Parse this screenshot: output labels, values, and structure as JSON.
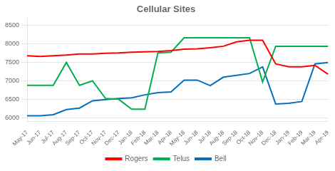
{
  "chart_data": {
    "type": "line",
    "title": "Cellular Sites",
    "categories": [
      "May-17",
      "Jun-17",
      "Jul-17",
      "Aug-17",
      "Sep-17",
      "Oct-17",
      "Nov-17",
      "Dec-17",
      "Jan-18",
      "Feb-18",
      "Mar-18",
      "Apr-18",
      "May-18",
      "Jun-18",
      "Jul-18",
      "Aug-18",
      "Sep-18",
      "Oct-18",
      "Nov-18",
      "Dec-18",
      "Jan-19",
      "Feb-19",
      "Mar-19",
      "Apr-19"
    ],
    "series": [
      {
        "name": "Rogers",
        "color": "#FF0000",
        "values": [
          7680,
          7660,
          7680,
          7700,
          7730,
          7730,
          7750,
          7760,
          7780,
          7790,
          7800,
          7820,
          7860,
          7870,
          7900,
          7940,
          8060,
          8100,
          8100,
          7460,
          7380,
          7380,
          7420,
          7180
        ]
      },
      {
        "name": "Telus",
        "color": "#00B050",
        "values": [
          6880,
          6880,
          6880,
          7500,
          6880,
          7000,
          6520,
          6500,
          6230,
          6230,
          7760,
          7780,
          8170,
          8170,
          8170,
          8170,
          8170,
          8170,
          6970,
          7940,
          7940,
          7940,
          7940,
          7940
        ]
      },
      {
        "name": "Bell",
        "color": "#0070C0",
        "values": [
          6050,
          6050,
          6080,
          6220,
          6260,
          6460,
          6490,
          6520,
          6540,
          6620,
          6680,
          6700,
          7020,
          7020,
          6870,
          7100,
          7150,
          7200,
          7380,
          6370,
          6390,
          6440,
          7460,
          7500
        ]
      }
    ],
    "ylim": [
      5900,
      8700
    ],
    "yticks": [
      6000,
      6500,
      7000,
      7500,
      8000,
      8500
    ],
    "grid": true,
    "legend": "bottom"
  }
}
